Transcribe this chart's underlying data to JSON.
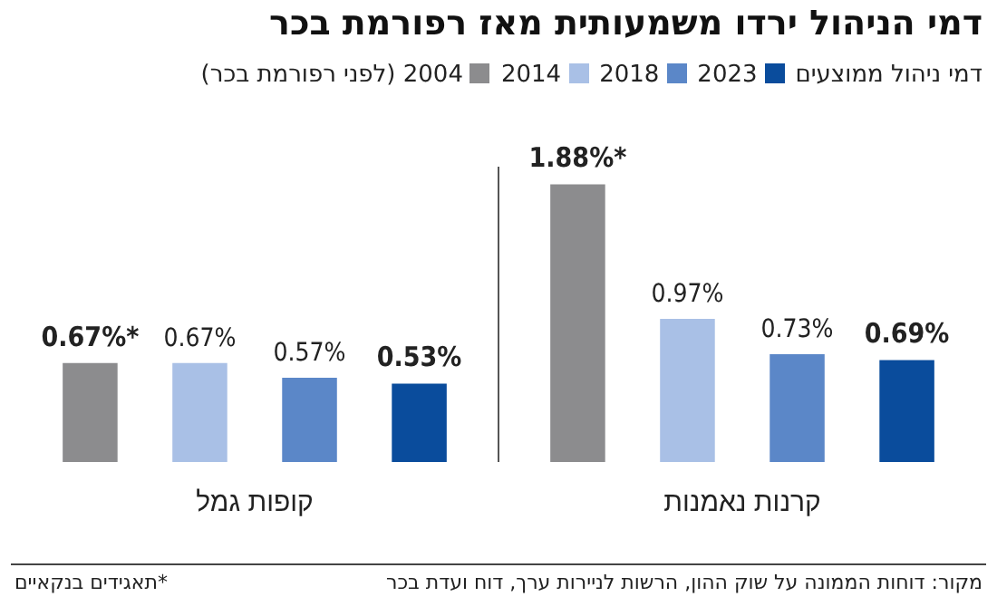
{
  "chart_data": {
    "type": "bar",
    "title": "דמי הניהול ירדו משמעותית מאז רפורמת בכר",
    "legend_title": "דמי ניהול ממוצעים",
    "categories": [
      "קופות גמל",
      "קרנות נאמנות"
    ],
    "series": [
      {
        "name": "2004 (לפני רפורמת בכר)",
        "color": "#8c8c8e",
        "values": [
          0.67,
          1.88
        ],
        "value_labels": [
          "0.67%*",
          "1.88%*"
        ]
      },
      {
        "name": "2014",
        "color": "#a9c0e6",
        "values": [
          0.67,
          0.97
        ],
        "value_labels": [
          "0.67%",
          "0.97%"
        ]
      },
      {
        "name": "2018",
        "color": "#5b87c8",
        "values": [
          0.57,
          0.73
        ],
        "value_labels": [
          "0.57%",
          "0.73%"
        ]
      },
      {
        "name": "2023",
        "color": "#0a4c9c",
        "values": [
          0.53,
          0.69
        ],
        "value_labels": [
          "0.53%",
          "0.69%"
        ]
      }
    ],
    "legend": "top right",
    "grid": "x",
    "annotations": [
      "מקור: דוחות הממונה על שוק ההון, הרשות לניירות ערך, דוח ועדת בכר",
      "*תאגידים בנקאיים"
    ]
  }
}
